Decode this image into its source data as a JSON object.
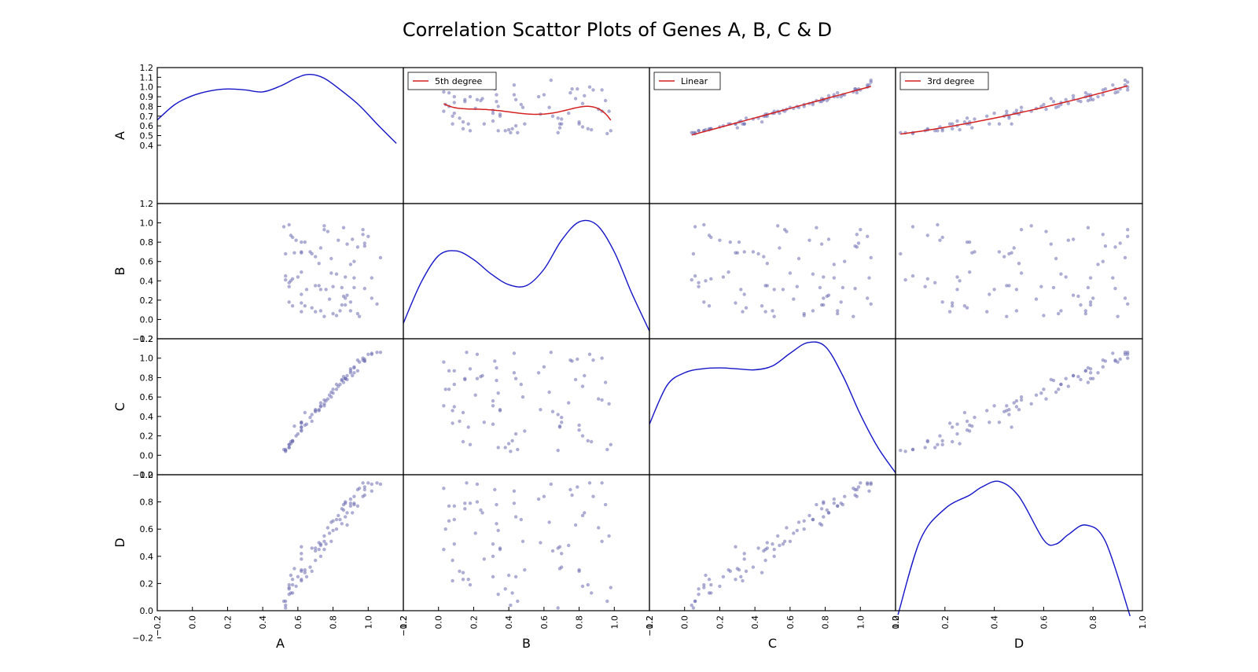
{
  "chart_data": {
    "type": "scatter",
    "title": "Correlation Scattor Plots of Genes A, B, C & D",
    "variables": [
      "A",
      "B",
      "C",
      "D"
    ],
    "diagonal": "kde",
    "colors": {
      "points": "#6b6bb0",
      "kde": "#1515c8",
      "fit": "#d42020"
    },
    "axis_ranges": {
      "A": [
        -0.2,
        1.2
      ],
      "B": [
        -0.2,
        1.2
      ],
      "C": [
        -0.2,
        1.2
      ],
      "D": [
        0.0,
        1.0
      ]
    },
    "row_ticks": {
      "A": [
        "0.4",
        "0.5",
        "0.6",
        "0.7",
        "0.8",
        "0.9",
        "1.0",
        "1.1",
        "1.2"
      ],
      "B": [
        "−0.2",
        "0.0",
        "0.2",
        "0.4",
        "0.6",
        "0.8",
        "1.0",
        "1.2"
      ],
      "C": [
        "−0.2",
        "0.0",
        "0.2",
        "0.4",
        "0.6",
        "0.8",
        "1.0",
        "1.2"
      ],
      "D": [
        "−0.2",
        "0.0",
        "0.2",
        "0.4",
        "0.6",
        "0.8",
        "1.0"
      ]
    },
    "col_ticks": {
      "A": [
        "−0.2",
        "0.0",
        "0.2",
        "0.4",
        "0.6",
        "0.8",
        "1.0",
        "1.2"
      ],
      "B": [
        "−0.2",
        "0.0",
        "0.2",
        "0.4",
        "0.6",
        "0.8",
        "1.0",
        "1.2"
      ],
      "C": [
        "−0.2",
        "0.0",
        "0.2",
        "0.4",
        "0.6",
        "0.8",
        "1.0",
        "1.2"
      ],
      "D": [
        "0.0",
        "0.2",
        "0.4",
        "0.6",
        "0.8",
        "1.0"
      ]
    },
    "fits": [
      {
        "label": "5th degree",
        "x": "B",
        "y": "A"
      },
      {
        "label": "Linear",
        "x": "C",
        "y": "A"
      },
      {
        "label": "3rd degree",
        "x": "D",
        "y": "A"
      }
    ],
    "kde": {
      "A": {
        "x": [
          -0.2,
          -0.1,
          0.0,
          0.1,
          0.2,
          0.3,
          0.4,
          0.5,
          0.6,
          0.67,
          0.75,
          0.85,
          0.95,
          1.05,
          1.16
        ],
        "y": [
          0.66,
          0.82,
          0.91,
          0.96,
          0.98,
          0.97,
          0.95,
          1.01,
          1.1,
          1.13,
          1.09,
          0.96,
          0.81,
          0.62,
          0.42
        ]
      },
      "B": {
        "x": [
          -0.2,
          -0.1,
          0.0,
          0.1,
          0.2,
          0.3,
          0.4,
          0.5,
          0.6,
          0.7,
          0.8,
          0.9,
          1.0,
          1.1,
          1.2
        ],
        "y": [
          -0.04,
          0.38,
          0.66,
          0.71,
          0.62,
          0.47,
          0.36,
          0.35,
          0.52,
          0.82,
          1.01,
          0.98,
          0.7,
          0.27,
          -0.12
        ]
      },
      "C": {
        "x": [
          -0.2,
          -0.1,
          0.0,
          0.1,
          0.2,
          0.3,
          0.4,
          0.5,
          0.6,
          0.7,
          0.8,
          0.9,
          1.0,
          1.1,
          1.2
        ],
        "y": [
          0.32,
          0.72,
          0.85,
          0.89,
          0.9,
          0.89,
          0.88,
          0.92,
          1.05,
          1.16,
          1.12,
          0.82,
          0.42,
          0.08,
          -0.18
        ]
      },
      "D": {
        "x": [
          0.01,
          0.1,
          0.2,
          0.3,
          0.35,
          0.42,
          0.5,
          0.6,
          0.65,
          0.7,
          0.77,
          0.85,
          0.95
        ],
        "y": [
          -0.03,
          0.52,
          0.75,
          0.85,
          0.91,
          0.95,
          0.84,
          0.52,
          0.49,
          0.56,
          0.63,
          0.51,
          -0.04
        ]
      }
    },
    "samples": {
      "A": [
        0.52,
        0.64,
        0.58,
        0.92,
        0.67,
        0.95,
        0.85,
        0.53,
        0.98,
        0.62,
        0.8,
        0.56,
        0.76,
        0.55,
        0.98,
        0.72,
        0.88,
        0.9,
        1.0,
        0.64,
        0.56,
        0.7,
        0.68,
        0.62,
        0.85,
        0.84,
        0.62,
        0.53,
        0.72,
        0.6,
        0.55,
        0.87,
        0.62,
        0.57,
        0.77,
        0.87,
        0.62,
        0.8,
        0.7,
        0.65,
        0.82,
        1.02,
        0.94,
        0.7,
        0.53,
        0.82,
        0.86,
        0.73,
        0.62,
        0.9,
        0.68,
        0.86,
        0.55,
        0.57,
        0.87,
        0.83,
        0.91,
        0.78,
        0.75,
        0.97,
        0.79,
        0.55,
        0.75,
        0.97,
        0.79,
        0.62,
        1.07,
        0.75,
        0.98,
        0.57,
        0.9,
        1.02,
        0.92,
        0.59,
        0.73,
        1.05,
        0.92,
        0.73,
        0.88,
        0.94
      ],
      "B": [
        0.96,
        0.14,
        0.69,
        0.6,
        0.7,
        0.03,
        0.15,
        0.45,
        0.79,
        0.69,
        0.34,
        0.4,
        0.31,
        0.34,
        0.76,
        0.58,
        0.78,
        0.57,
        0.86,
        0.8,
        0.87,
        0.08,
        0.12,
        0.26,
        0.33,
        0.09,
        0.7,
        0.41,
        0.35,
        0.44,
        0.38,
        0.44,
        0.8,
        0.14,
        0.91,
        0.15,
        0.08,
        0.06,
        0.65,
        0.31,
        0.04,
        0.43,
        0.75,
        0.35,
        0.68,
        0.47,
        0.95,
        0.74,
        0.49,
        0.09,
        0.68,
        0.24,
        0.18,
        0.42,
        0.22,
        0.82,
        0.83,
        0.21,
        0.97,
        0.88,
        0.63,
        0.98,
        0.03,
        0.93,
        0.48,
        0.17,
        0.64,
        0.93,
        0.32,
        0.85,
        0.18,
        0.22,
        0.33,
        0.82,
        0.09,
        0.16,
        0.43,
        0.31,
        0.25,
        0.06
      ],
      "C": [
        0.06,
        0.44,
        0.3,
        0.91,
        0.39,
        0.96,
        0.78,
        0.06,
        0.99,
        0.29,
        0.64,
        0.12,
        0.56,
        0.08,
        0.97,
        0.47,
        0.78,
        0.85,
        1.04,
        0.31,
        0.14,
        0.46,
        0.35,
        0.34,
        0.77,
        0.73,
        0.34,
        0.04,
        0.46,
        0.22,
        0.08,
        0.79,
        0.26,
        0.14,
        0.58,
        0.79,
        0.33,
        0.68,
        0.45,
        0.32,
        0.68,
        1.05,
        0.98,
        0.47,
        0.05,
        0.73,
        0.75,
        0.54,
        0.25,
        0.87,
        0.42,
        0.81,
        0.11,
        0.15,
        0.79,
        0.71,
        0.82,
        0.62,
        0.53,
        0.98,
        0.65,
        0.11,
        0.51,
        1.0,
        0.6,
        0.29,
        1.06,
        0.57,
        0.97,
        0.15,
        0.89,
        1.04,
        0.9,
        0.2,
        0.5,
        1.06,
        0.85,
        0.51,
        0.82,
        0.87
      ],
      "D": [
        0.07,
        0.28,
        0.31,
        0.84,
        0.32,
        0.9,
        0.75,
        0.07,
        0.91,
        0.47,
        0.59,
        0.26,
        0.49,
        0.12,
        0.85,
        0.5,
        0.63,
        0.82,
        0.94,
        0.3,
        0.13,
        0.37,
        0.29,
        0.38,
        0.64,
        0.67,
        0.42,
        0.04,
        0.45,
        0.25,
        0.16,
        0.69,
        0.29,
        0.23,
        0.61,
        0.79,
        0.22,
        0.66,
        0.44,
        0.25,
        0.6,
        0.88,
        0.89,
        0.46,
        0.02,
        0.67,
        0.78,
        0.48,
        0.3,
        0.77,
        0.46,
        0.74,
        0.19,
        0.13,
        0.8,
        0.7,
        0.72,
        0.57,
        0.55,
        0.84,
        0.65,
        0.17,
        0.45,
        0.94,
        0.51,
        0.23,
        0.93,
        0.51,
        0.89,
        0.19,
        0.79,
        0.93,
        0.78,
        0.18,
        0.49,
        0.94,
        0.79,
        0.4,
        0.72,
        0.77
      ]
    }
  }
}
